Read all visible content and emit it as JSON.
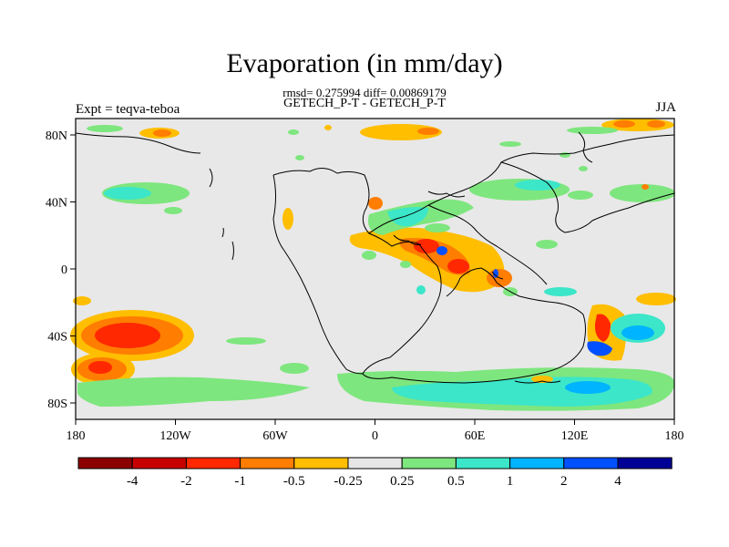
{
  "title": "Evaporation (in mm/day)",
  "stats_line": "rmsd= 0.275994 diff= 0.00869179",
  "comparison_line": "GETECH_P-T - GETECH_P-T",
  "experiment_label": "Expt = teqva-teboa",
  "season_label": "JJA",
  "map": {
    "land_color": "#e8e8e8",
    "frame_color": "#000000",
    "lon_ticks": [
      "180",
      "120W",
      "60W",
      "0",
      "60E",
      "120E",
      "180"
    ],
    "lat_ticks": [
      "80N",
      "40N",
      "0",
      "40S",
      "80S"
    ]
  },
  "colorbar": {
    "colors": [
      "#8b0000",
      "#c80000",
      "#ff2800",
      "#ff7d00",
      "#ffbe00",
      "#e6e6e6",
      "#7ee67e",
      "#3ce6c8",
      "#00b4ff",
      "#0050ff",
      "#000096"
    ],
    "labels": [
      "-4",
      "-2",
      "-1",
      "-0.5",
      "-0.25",
      "0.25",
      "0.5",
      "1",
      "2",
      "4"
    ]
  }
}
